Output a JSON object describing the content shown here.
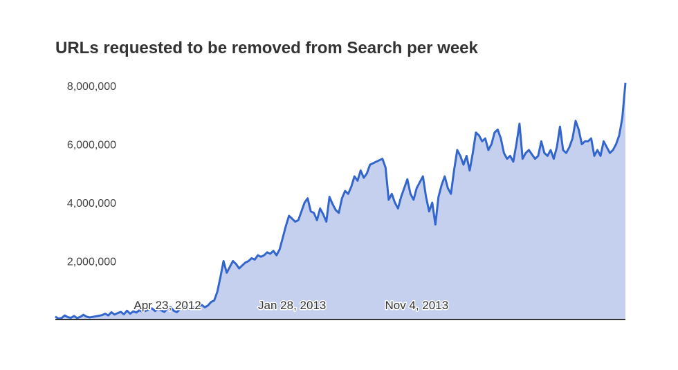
{
  "chart_data": {
    "type": "area",
    "title": "URLs requested to be removed from Search per week",
    "xlabel": "",
    "ylabel": "",
    "ylim": [
      0,
      8000000
    ],
    "yticks": [
      {
        "value": 2000000,
        "label": "2,000,000"
      },
      {
        "value": 4000000,
        "label": "4,000,000"
      },
      {
        "value": 6000000,
        "label": "6,000,000"
      },
      {
        "value": 8000000,
        "label": "8,000,000"
      }
    ],
    "xticks": [
      {
        "index": 36,
        "label": "Apr 23, 2012"
      },
      {
        "index": 76,
        "label": "Jan 28, 2013"
      },
      {
        "index": 116,
        "label": "Nov 4, 2013"
      }
    ],
    "grid": false,
    "legend": "none",
    "colors": {
      "line": "#3366cc",
      "fill": "#c4d0ee",
      "axis": "#333333"
    },
    "series": [
      {
        "values": [
          100000,
          30000,
          50000,
          140000,
          80000,
          60000,
          120000,
          50000,
          90000,
          160000,
          100000,
          70000,
          90000,
          110000,
          130000,
          150000,
          200000,
          140000,
          250000,
          170000,
          220000,
          260000,
          180000,
          300000,
          200000,
          280000,
          240000,
          320000,
          260000,
          300000,
          340000,
          380000,
          290000,
          360000,
          310000,
          260000,
          380000,
          420000,
          300000,
          250000,
          350000,
          400000,
          450000,
          340000,
          420000,
          380000,
          460000,
          500000,
          420000,
          480000,
          600000,
          650000,
          950000,
          1450000,
          2000000,
          1600000,
          1800000,
          2000000,
          1900000,
          1750000,
          1850000,
          1950000,
          2000000,
          2100000,
          2050000,
          2200000,
          2150000,
          2200000,
          2300000,
          2250000,
          2350000,
          2200000,
          2400000,
          2800000,
          3200000,
          3550000,
          3450000,
          3350000,
          3400000,
          3700000,
          4000000,
          4150000,
          3700000,
          3650000,
          3400000,
          3800000,
          3600000,
          3350000,
          4200000,
          3950000,
          3750000,
          3650000,
          4150000,
          4400000,
          4300000,
          4550000,
          4900000,
          4750000,
          5100000,
          4850000,
          5000000,
          5300000,
          5350000,
          5400000,
          5450000,
          5500000,
          5200000,
          4100000,
          4300000,
          4000000,
          3800000,
          4200000,
          4500000,
          4800000,
          4300000,
          4100000,
          4500000,
          4700000,
          4900000,
          4200000,
          3700000,
          4000000,
          3250000,
          4200000,
          4600000,
          4900000,
          4500000,
          4300000,
          5100000,
          5800000,
          5600000,
          5300000,
          5600000,
          5100000,
          5700000,
          6400000,
          6300000,
          6100000,
          6200000,
          5800000,
          6000000,
          6400000,
          6500000,
          6200000,
          5700000,
          5500000,
          5600000,
          5400000,
          6000000,
          6700000,
          5500000,
          5700000,
          5800000,
          5650000,
          5500000,
          5600000,
          6100000,
          5700000,
          5600000,
          5800000,
          5500000,
          5900000,
          6600000,
          5800000,
          5700000,
          5900000,
          6200000,
          6800000,
          6500000,
          6000000,
          6100000,
          6100000,
          6200000,
          5600000,
          5800000,
          5600000,
          6100000,
          5900000,
          5700000,
          5800000,
          6000000,
          6300000,
          6900000,
          8100000
        ]
      }
    ]
  }
}
